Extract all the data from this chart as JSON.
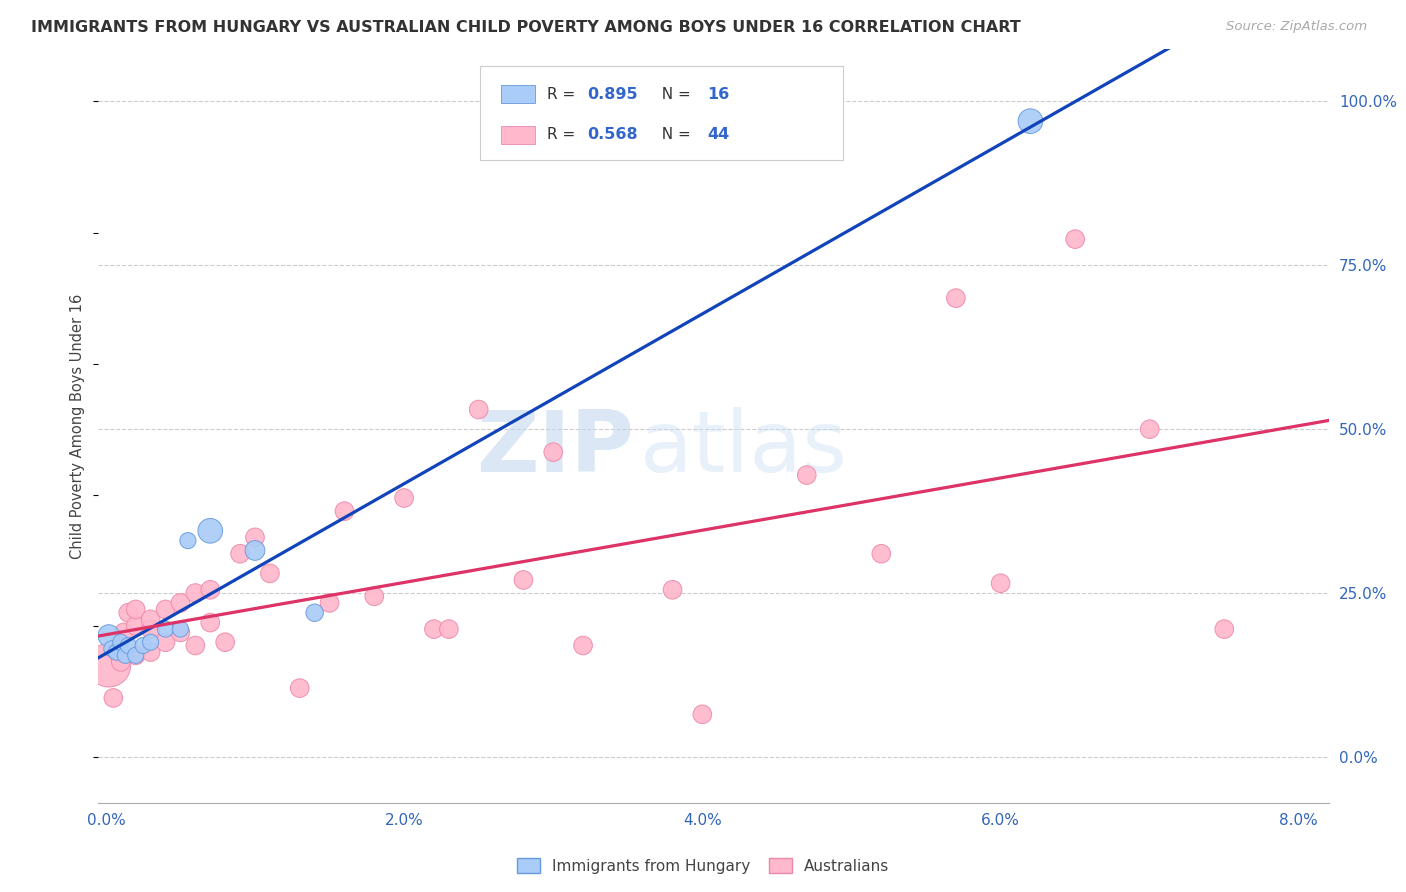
{
  "title": "IMMIGRANTS FROM HUNGARY VS AUSTRALIAN CHILD POVERTY AMONG BOYS UNDER 16 CORRELATION CHART",
  "source": "Source: ZipAtlas.com",
  "ylabel": "Child Poverty Among Boys Under 16",
  "xlim": [
    -0.0005,
    0.082
  ],
  "ylim": [
    -0.07,
    1.08
  ],
  "xtick_vals": [
    0.0,
    0.01,
    0.02,
    0.03,
    0.04,
    0.05,
    0.06,
    0.07,
    0.08
  ],
  "xticklabels": [
    "0.0%",
    "",
    "2.0%",
    "",
    "4.0%",
    "",
    "6.0%",
    "",
    "8.0%"
  ],
  "yticks_right": [
    0.0,
    0.25,
    0.5,
    0.75,
    1.0
  ],
  "ytick_right_labels": [
    "0.0%",
    "25.0%",
    "50.0%",
    "75.0%",
    "100.0%"
  ],
  "grid_color": "#cccccc",
  "bg_color": "#ffffff",
  "hungary_fill": "#aaccf8",
  "hungary_edge": "#6699dd",
  "australia_fill": "#ffb8cc",
  "australia_edge": "#ee88aa",
  "hungary_line_color": "#1144bb",
  "australia_line_color": "#dd3366",
  "r_hungary": 0.895,
  "n_hungary": 16,
  "r_australia": 0.568,
  "n_australia": 44,
  "legend_label_hungary": "Immigrants from Hungary",
  "legend_label_australia": "Australians",
  "watermark_zip": "ZIP",
  "watermark_atlas": "atlas",
  "hungary_x": [
    0.0002,
    0.0004,
    0.0007,
    0.001,
    0.0013,
    0.0015,
    0.002,
    0.0025,
    0.003,
    0.004,
    0.005,
    0.0055,
    0.007,
    0.01,
    0.014,
    0.062
  ],
  "hungary_y": [
    0.185,
    0.165,
    0.16,
    0.175,
    0.155,
    0.17,
    0.155,
    0.17,
    0.175,
    0.195,
    0.195,
    0.33,
    0.345,
    0.315,
    0.22,
    0.97
  ],
  "hungary_size": [
    55,
    30,
    30,
    30,
    30,
    30,
    30,
    30,
    30,
    30,
    30,
    30,
    70,
    45,
    35,
    70
  ],
  "australia_x": [
    0.0002,
    0.0005,
    0.0008,
    0.001,
    0.0012,
    0.0015,
    0.002,
    0.002,
    0.002,
    0.003,
    0.003,
    0.003,
    0.004,
    0.004,
    0.005,
    0.005,
    0.006,
    0.006,
    0.007,
    0.007,
    0.008,
    0.009,
    0.01,
    0.011,
    0.013,
    0.015,
    0.016,
    0.018,
    0.02,
    0.022,
    0.023,
    0.025,
    0.028,
    0.03,
    0.032,
    0.038,
    0.04,
    0.047,
    0.052,
    0.057,
    0.06,
    0.065,
    0.07,
    0.075
  ],
  "australia_y": [
    0.14,
    0.09,
    0.16,
    0.145,
    0.19,
    0.22,
    0.155,
    0.2,
    0.225,
    0.16,
    0.195,
    0.21,
    0.175,
    0.225,
    0.19,
    0.235,
    0.17,
    0.25,
    0.205,
    0.255,
    0.175,
    0.31,
    0.335,
    0.28,
    0.105,
    0.235,
    0.375,
    0.245,
    0.395,
    0.195,
    0.195,
    0.53,
    0.27,
    0.465,
    0.17,
    0.255,
    0.065,
    0.43,
    0.31,
    0.7,
    0.265,
    0.79,
    0.5,
    0.195
  ],
  "australia_size": [
    220,
    40,
    40,
    40,
    40,
    40,
    40,
    40,
    40,
    40,
    40,
    40,
    40,
    40,
    40,
    40,
    40,
    40,
    40,
    40,
    40,
    40,
    40,
    40,
    40,
    40,
    40,
    40,
    40,
    40,
    40,
    40,
    40,
    40,
    40,
    40,
    40,
    40,
    40,
    40,
    40,
    40,
    40,
    40
  ]
}
